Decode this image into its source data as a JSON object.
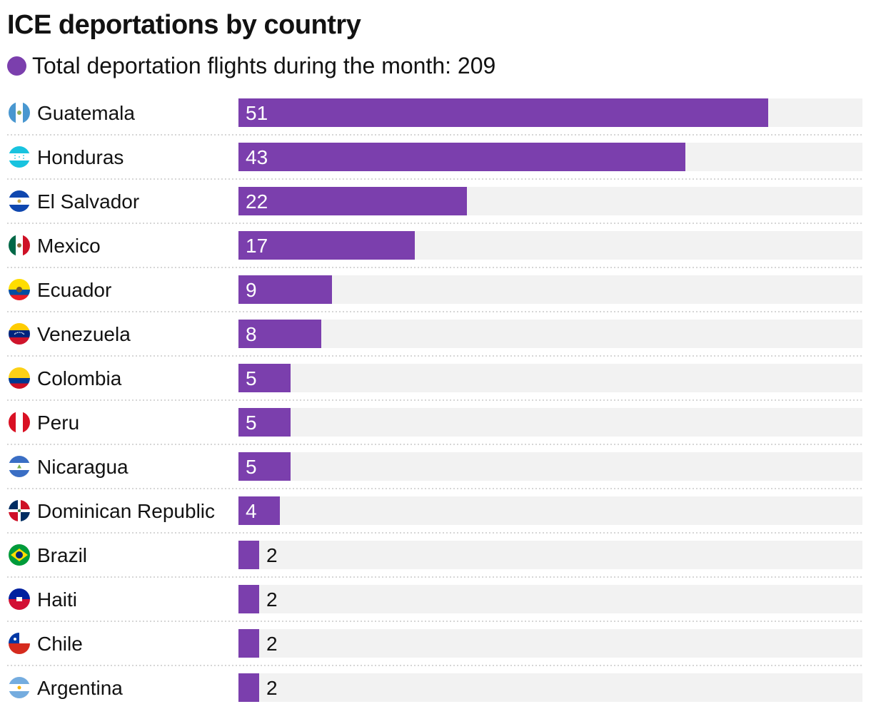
{
  "colors": {
    "bar": "#7b3fad",
    "track": "#f2f2f2",
    "divider": "#c8c8c8",
    "text": "#121212",
    "label_inside": "#ffffff"
  },
  "chart_data": {
    "type": "bar",
    "orientation": "horizontal",
    "title": "ICE deportations by country",
    "legend": {
      "label": "Total deportation flights during the month: 209"
    },
    "xlim": [
      0,
      60
    ],
    "categories": [
      "Guatemala",
      "Honduras",
      "El Salvador",
      "Mexico",
      "Ecuador",
      "Venezuela",
      "Colombia",
      "Peru",
      "Nicaragua",
      "Dominican Republic",
      "Brazil",
      "Haiti",
      "Chile",
      "Argentina"
    ],
    "values": [
      51,
      43,
      22,
      17,
      9,
      8,
      5,
      5,
      5,
      4,
      2,
      2,
      2,
      2
    ],
    "flag_icons": [
      "guatemala-flag-icon",
      "honduras-flag-icon",
      "el-salvador-flag-icon",
      "mexico-flag-icon",
      "ecuador-flag-icon",
      "venezuela-flag-icon",
      "colombia-flag-icon",
      "peru-flag-icon",
      "nicaragua-flag-icon",
      "dominican-republic-flag-icon",
      "brazil-flag-icon",
      "haiti-flag-icon",
      "chile-flag-icon",
      "argentina-flag-icon"
    ]
  }
}
